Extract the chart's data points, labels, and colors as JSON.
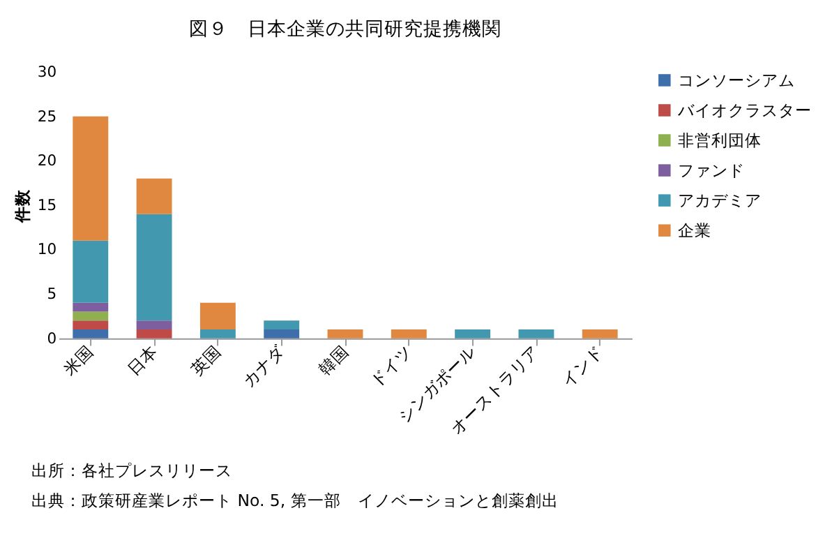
{
  "chart_data": {
    "type": "bar",
    "stacked": true,
    "title": "図９　日本企業の共同研究提携機関",
    "ylabel": "件数",
    "categories": [
      "米国",
      "日本",
      "英国",
      "カナダ",
      "韓国",
      "ドイツ",
      "シンガポール",
      "オーストラリア",
      "インド"
    ],
    "series": [
      {
        "name": "コンソーシアム",
        "color": "#3f6fab",
        "values": [
          1,
          0,
          0,
          1,
          0,
          0,
          0,
          0,
          0
        ]
      },
      {
        "name": "バイオクラスター",
        "color": "#be4b48",
        "values": [
          1,
          1,
          0,
          0,
          0,
          0,
          0,
          0,
          0
        ]
      },
      {
        "name": "非営利団体",
        "color": "#8fb04f",
        "values": [
          1,
          0,
          0,
          0,
          0,
          0,
          0,
          0,
          0
        ]
      },
      {
        "name": "ファンド",
        "color": "#7d5f9f",
        "values": [
          1,
          1,
          0,
          0,
          0,
          0,
          0,
          0,
          0
        ]
      },
      {
        "name": "アカデミア",
        "color": "#4198af",
        "values": [
          7,
          12,
          1,
          1,
          0,
          0,
          1,
          1,
          0
        ]
      },
      {
        "name": "企業",
        "color": "#e0883f",
        "values": [
          14,
          4,
          3,
          0,
          1,
          1,
          0,
          0,
          1
        ]
      }
    ],
    "ylim": [
      0,
      30
    ],
    "yticks": [
      0,
      5,
      10,
      15,
      20,
      25,
      30
    ],
    "grid": false,
    "legend": "right",
    "annotations": [
      "出所：各社プレスリリース",
      "出典：政策研産業レポート No. 5, 第一部　イノベーションと創薬創出"
    ]
  }
}
